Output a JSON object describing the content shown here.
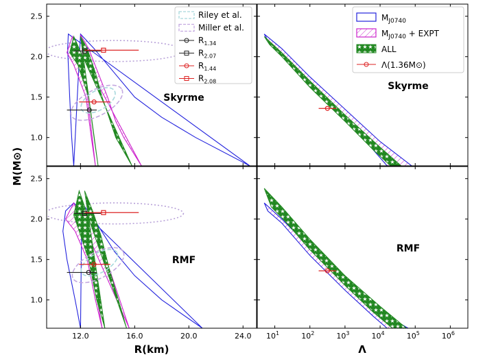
{
  "chart_data": {
    "type": "line",
    "ylabel": "M(M⊙)",
    "xlabel_left": "R(km)",
    "xlabel_right": "Λ",
    "colors": {
      "mj0740": "#2222dd",
      "expt": "#cc22cc",
      "all": "#228822",
      "riley": "#a8d8dc",
      "miller": "#c3a8e0",
      "r134": "#222222",
      "r207": "#222222",
      "r144": "#dd2222",
      "r208": "#dd2222",
      "lambda": "#dd2222"
    },
    "left_xlim": [
      9.5,
      25.0
    ],
    "right_xlog_lim": [
      0.5,
      6.5
    ],
    "ylim": [
      0.65,
      2.65
    ],
    "left_ticks": [
      "12.0",
      "16.0",
      "20.0",
      "24.0"
    ],
    "left_tick_values": [
      12,
      16,
      20,
      24
    ],
    "right_ticks": [
      {
        "base": "10",
        "exp": "1",
        "v": 1
      },
      {
        "base": "10",
        "exp": "2",
        "v": 2
      },
      {
        "base": "10",
        "exp": "3",
        "v": 3
      },
      {
        "base": "10",
        "exp": "4",
        "v": 4
      },
      {
        "base": "10",
        "exp": "5",
        "v": 5
      },
      {
        "base": "10",
        "exp": "6",
        "v": 6
      }
    ],
    "y_ticks": [
      "1.0",
      "1.5",
      "2.0",
      "2.5"
    ],
    "y_tick_values": [
      1.0,
      1.5,
      2.0,
      2.5
    ],
    "legend_left": [
      {
        "key": "riley",
        "text": "Riley et al.",
        "style": "dashed-box"
      },
      {
        "key": "miller",
        "text": "Miller et al.",
        "style": "dashed-box"
      },
      {
        "key": "r134",
        "text": "R",
        "sub": "1.34",
        "style": "circle"
      },
      {
        "key": "r207",
        "text": "R",
        "sub": "2.07",
        "style": "square"
      },
      {
        "key": "r144",
        "text": "R",
        "sub": "1.44",
        "style": "circle"
      },
      {
        "key": "r208",
        "text": "R",
        "sub": "2.08",
        "style": "square"
      }
    ],
    "legend_right": [
      {
        "key": "mj0740",
        "text": "M",
        "sub": "J0740",
        "suffix": "",
        "style": "box"
      },
      {
        "key": "expt",
        "text": "M",
        "sub": "J0740",
        "suffix": " + EXPT",
        "style": "hatch"
      },
      {
        "key": "all",
        "text": "ALL",
        "sub": "",
        "suffix": "",
        "style": "stars"
      },
      {
        "key": "lambda",
        "text": "Λ(1.36M⊙)",
        "sub": "",
        "suffix": "",
        "style": "circle"
      }
    ],
    "panels": [
      {
        "name": "Skyrme",
        "label": "Skyrme",
        "mr": {
          "mj0740": {
            "left": [
              [
                11.5,
                0.65
              ],
              [
                11.35,
                1.0
              ],
              [
                11.2,
                1.5
              ],
              [
                11.1,
                1.9
              ],
              [
                11.05,
                2.1
              ],
              [
                11.1,
                2.28
              ]
            ],
            "right": [
              [
                12.0,
                2.28
              ],
              [
                13.0,
                2.1
              ],
              [
                14.5,
                1.8
              ],
              [
                16.0,
                1.5
              ],
              [
                18.0,
                1.25
              ],
              [
                20.5,
                1.0
              ],
              [
                24.5,
                0.65
              ]
            ]
          },
          "expt": {
            "left": [
              [
                13.1,
                0.65
              ],
              [
                12.8,
                1.0
              ],
              [
                12.4,
                1.5
              ],
              [
                11.5,
                1.9
              ],
              [
                11.0,
                2.05
              ],
              [
                11.4,
                2.25
              ]
            ],
            "right": [
              [
                12.0,
                2.27
              ],
              [
                12.6,
                2.1
              ],
              [
                13.3,
                1.8
              ],
              [
                14.0,
                1.5
              ],
              [
                14.6,
                1.2
              ],
              [
                15.2,
                1.0
              ],
              [
                16.5,
                0.65
              ]
            ]
          },
          "all": {
            "left": [
              [
                13.3,
                0.65
              ],
              [
                13.0,
                1.0
              ],
              [
                12.6,
                1.5
              ],
              [
                11.8,
                1.9
              ],
              [
                11.2,
                2.05
              ],
              [
                11.5,
                2.25
              ]
            ],
            "right": [
              [
                12.0,
                2.25
              ],
              [
                12.5,
                2.1
              ],
              [
                13.1,
                1.8
              ],
              [
                13.6,
                1.5
              ],
              [
                14.2,
                1.2
              ],
              [
                14.6,
                1.0
              ],
              [
                15.8,
                0.65
              ]
            ]
          },
          "riley": {
            "cx": 13.3,
            "cy": 1.46,
            "rx": 1.4,
            "ry": 0.12,
            "rot": -30
          },
          "miller": {
            "cx": 13.2,
            "cy": 1.43,
            "rx": 2.1,
            "ry": 0.16,
            "rot": -28
          },
          "pt_134": {
            "x": 12.65,
            "y": 1.34,
            "xerr": [
              11.0,
              13.2
            ]
          },
          "pt_207": {
            "x": 12.3,
            "y": 2.07,
            "xerr": [
              11.5,
              13.5
            ]
          },
          "pt_144": {
            "x": 13.0,
            "y": 1.44,
            "xerr": [
              11.9,
              14.2
            ]
          },
          "pt_208": {
            "x": 13.7,
            "y": 2.08,
            "xerr": [
              12.3,
              16.3
            ]
          },
          "dotted": {
            "cx": 14.5,
            "cy": 2.07,
            "rx": 5.1,
            "ry": 0.13,
            "rot": 0
          }
        },
        "ml": {
          "mj0740": {
            "upper": [
              [
                0.7,
                2.28
              ],
              [
                1.2,
                2.1
              ],
              [
                2.0,
                1.75
              ],
              [
                3.0,
                1.35
              ],
              [
                4.0,
                0.95
              ],
              [
                4.9,
                0.65
              ]
            ],
            "lower": [
              [
                0.8,
                2.2
              ],
              [
                1.1,
                2.05
              ],
              [
                2.0,
                1.65
              ],
              [
                3.0,
                1.22
              ],
              [
                3.8,
                0.85
              ],
              [
                4.2,
                0.65
              ]
            ]
          },
          "all": {
            "upper": [
              [
                0.7,
                2.25
              ],
              [
                1.2,
                2.05
              ],
              [
                2.0,
                1.7
              ],
              [
                3.0,
                1.28
              ],
              [
                4.0,
                0.88
              ],
              [
                4.6,
                0.65
              ]
            ],
            "lower": [
              [
                0.85,
                2.15
              ],
              [
                1.2,
                2.0
              ],
              [
                2.0,
                1.62
              ],
              [
                3.0,
                1.2
              ],
              [
                3.8,
                0.85
              ],
              [
                4.3,
                0.65
              ]
            ]
          },
          "pt": {
            "x": 2.5,
            "y": 1.36,
            "xerr": [
              2.25,
              2.75
            ]
          }
        }
      },
      {
        "name": "RMF",
        "label": "RMF",
        "mr": {
          "mj0740": {
            "left": [
              [
                12.0,
                0.65
              ],
              [
                11.6,
                1.0
              ],
              [
                11.0,
                1.5
              ],
              [
                10.7,
                1.85
              ],
              [
                10.9,
                2.1
              ],
              [
                11.5,
                2.2
              ]
            ],
            "right": [
              [
                12.1,
                2.2
              ],
              [
                13.0,
                2.0
              ],
              [
                14.5,
                1.6
              ],
              [
                16.0,
                1.3
              ],
              [
                18.0,
                1.0
              ],
              [
                21.0,
                0.65
              ]
            ]
          },
          "expt": {
            "left": [
              [
                13.6,
                0.65
              ],
              [
                13.1,
                1.0
              ],
              [
                12.5,
                1.5
              ],
              [
                11.6,
                1.85
              ],
              [
                10.9,
                2.0
              ],
              [
                11.5,
                2.2
              ]
            ],
            "right": [
              [
                12.0,
                2.22
              ],
              [
                12.8,
                2.0
              ],
              [
                13.4,
                1.7
              ],
              [
                14.2,
                1.35
              ],
              [
                14.9,
                1.0
              ],
              [
                15.6,
                0.65
              ]
            ]
          },
          "all": {
            "left": [
              [
                13.8,
                0.65
              ],
              [
                13.2,
                1.0
              ],
              [
                12.6,
                1.5
              ],
              [
                11.9,
                1.85
              ],
              [
                11.5,
                2.05
              ],
              [
                11.9,
                2.35
              ]
            ],
            "right": [
              [
                12.3,
                2.35
              ],
              [
                12.9,
                2.1
              ],
              [
                13.5,
                1.8
              ],
              [
                14.1,
                1.4
              ],
              [
                14.8,
                1.0
              ],
              [
                15.4,
                0.65
              ]
            ]
          },
          "riley": {
            "cx": 13.4,
            "cy": 1.46,
            "rx": 1.5,
            "ry": 0.12,
            "rot": -30
          },
          "miller": {
            "cx": 13.3,
            "cy": 1.43,
            "rx": 2.1,
            "ry": 0.16,
            "rot": -28
          },
          "pt_134": {
            "x": 12.6,
            "y": 1.34,
            "xerr": [
              11.0,
              13.2
            ]
          },
          "pt_207": {
            "x": 12.3,
            "y": 2.07,
            "xerr": [
              11.5,
              13.5
            ]
          },
          "pt_144": {
            "x": 13.0,
            "y": 1.44,
            "xerr": [
              11.9,
              14.2
            ]
          },
          "pt_208": {
            "x": 13.7,
            "y": 2.08,
            "xerr": [
              12.3,
              16.3
            ]
          },
          "dotted": {
            "cx": 14.5,
            "cy": 2.07,
            "rx": 5.1,
            "ry": 0.13,
            "rot": 0
          }
        },
        "ml": {
          "mj0740": {
            "upper": [
              [
                0.7,
                2.2
              ],
              [
                1.2,
                2.0
              ],
              [
                2.0,
                1.65
              ],
              [
                3.0,
                1.22
              ],
              [
                4.0,
                0.85
              ],
              [
                4.8,
                0.65
              ]
            ],
            "lower": [
              [
                0.8,
                2.1
              ],
              [
                1.2,
                1.95
              ],
              [
                2.0,
                1.55
              ],
              [
                3.0,
                1.12
              ],
              [
                3.8,
                0.8
              ],
              [
                4.2,
                0.65
              ]
            ]
          },
          "all": {
            "upper": [
              [
                0.7,
                2.38
              ],
              [
                1.2,
                2.15
              ],
              [
                2.0,
                1.75
              ],
              [
                3.0,
                1.3
              ],
              [
                4.0,
                0.92
              ],
              [
                4.75,
                0.65
              ]
            ],
            "lower": [
              [
                0.9,
                2.15
              ],
              [
                1.3,
                1.97
              ],
              [
                2.0,
                1.62
              ],
              [
                3.0,
                1.18
              ],
              [
                3.8,
                0.85
              ],
              [
                4.35,
                0.65
              ]
            ]
          },
          "pt": {
            "x": 2.5,
            "y": 1.36,
            "xerr": [
              2.25,
              2.75
            ]
          }
        }
      }
    ]
  }
}
